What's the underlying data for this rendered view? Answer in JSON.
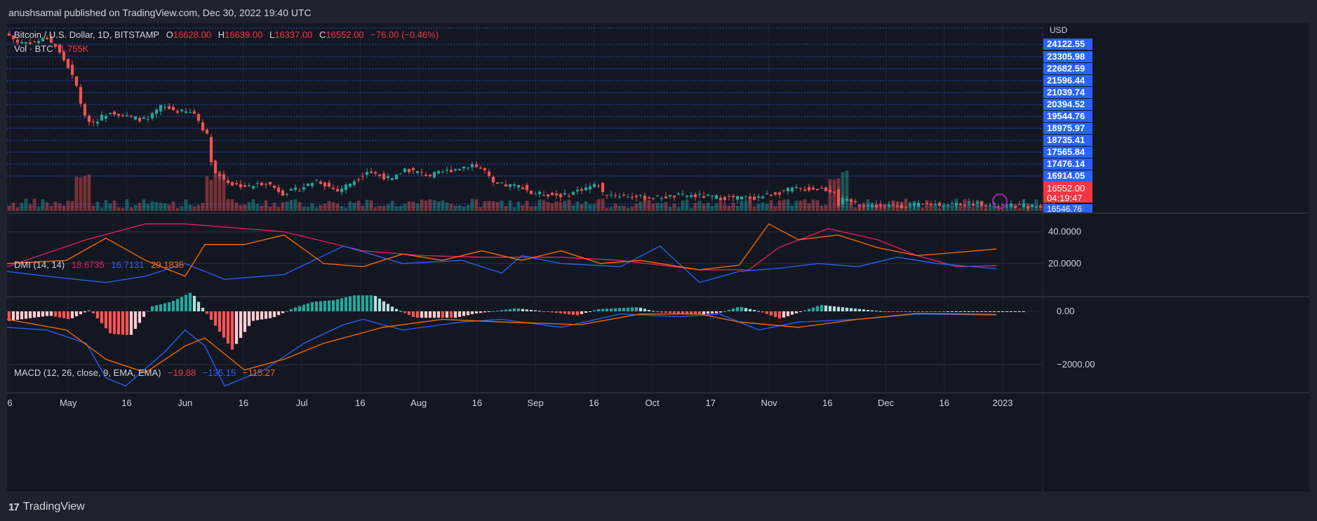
{
  "publisher": "anushsamal published on TradingView.com, Dec 30, 2022 19:40 UTC",
  "footer": "TradingView",
  "currency": "USD",
  "price_panel": {
    "symbol": "Bitcoin / U.S. Dollar, 1D, BITSTAMP",
    "o_label": "O",
    "o_value": "16628.00",
    "h_label": "H",
    "h_value": "16639.00",
    "l_label": "L",
    "l_value": "16337.00",
    "c_label": "C",
    "c_value": "16552.00",
    "change": "−76.00 (−0.46%)",
    "vol_label": "Vol · BTC",
    "vol_value": "1.755K",
    "price_labels": [
      "24122.55",
      "23305.98",
      "22682.59",
      "21596.44",
      "21039.74",
      "20394.52",
      "19544.76",
      "18975.97",
      "18735.41",
      "17565.84",
      "17476.14",
      "16914.05"
    ],
    "last_price": "16552.00",
    "countdown": "04:19:47",
    "low_label": "16546.76"
  },
  "dmi_panel": {
    "label": "DMI (14, 14)",
    "adx": "18.6735",
    "plus_di": "16.7131",
    "minus_di": "29.1835",
    "axis": [
      "40.0000",
      "20.0000"
    ]
  },
  "macd_panel": {
    "label": "MACD (12, 26, close, 9, EMA, EMA)",
    "hist": "−19.88",
    "macd": "−135.15",
    "signal": "−115.27",
    "axis": [
      "0.00",
      "−2000.00"
    ]
  },
  "time_axis": [
    "6",
    "May",
    "16",
    "Jun",
    "16",
    "Jul",
    "16",
    "Aug",
    "16",
    "Sep",
    "16",
    "Oct",
    "17",
    "Nov",
    "16",
    "Dec",
    "16",
    "2023"
  ],
  "colors": {
    "up": "#26a69a",
    "down": "#ef5350",
    "adx": "#e91e63",
    "plus_di": "#2962ff",
    "minus_di": "#ff6d00",
    "price_line": "#2962ff",
    "last": "#f23645"
  },
  "chart_data": [
    {
      "type": "candlestick",
      "title": "Bitcoin / U.S. Dollar, 1D, BITSTAMP",
      "ylabel": "USD",
      "x_range": [
        "2022-04-26",
        "2022-12-30"
      ],
      "ylim": [
        16400,
        24700
      ],
      "anchors": [
        {
          "date": "2022-04-26",
          "close": 24300
        },
        {
          "date": "2022-04-28",
          "close": 24000
        },
        {
          "date": "2022-05-02",
          "close": 24000
        },
        {
          "date": "2022-05-05",
          "close": 24200
        },
        {
          "date": "2022-05-07",
          "close": 23800
        },
        {
          "date": "2022-05-10",
          "close": 22900
        },
        {
          "date": "2022-05-12",
          "close": 22000
        },
        {
          "date": "2022-05-14",
          "close": 20600
        },
        {
          "date": "2022-05-16",
          "close": 20400
        },
        {
          "date": "2022-05-20",
          "close": 20900
        },
        {
          "date": "2022-05-25",
          "close": 20600
        },
        {
          "date": "2022-05-29",
          "close": 20500
        },
        {
          "date": "2022-06-01",
          "close": 21100
        },
        {
          "date": "2022-06-05",
          "close": 20900
        },
        {
          "date": "2022-06-09",
          "close": 20800
        },
        {
          "date": "2022-06-12",
          "close": 19800
        },
        {
          "date": "2022-06-13",
          "close": 18700
        },
        {
          "date": "2022-06-14",
          "close": 18100
        },
        {
          "date": "2022-06-18",
          "close": 17600
        },
        {
          "date": "2022-06-22",
          "close": 17500
        },
        {
          "date": "2022-06-26",
          "close": 17700
        },
        {
          "date": "2022-06-30",
          "close": 17200
        },
        {
          "date": "2022-07-04",
          "close": 17400
        },
        {
          "date": "2022-07-08",
          "close": 17800
        },
        {
          "date": "2022-07-13",
          "close": 17300
        },
        {
          "date": "2022-07-18",
          "close": 17900
        },
        {
          "date": "2022-07-20",
          "close": 18200
        },
        {
          "date": "2022-07-26",
          "close": 17800
        },
        {
          "date": "2022-07-29",
          "close": 18300
        },
        {
          "date": "2022-08-04",
          "close": 18000
        },
        {
          "date": "2022-08-10",
          "close": 18300
        },
        {
          "date": "2022-08-14",
          "close": 18500
        },
        {
          "date": "2022-08-17",
          "close": 18200
        },
        {
          "date": "2022-08-19",
          "close": 17600
        },
        {
          "date": "2022-08-26",
          "close": 17500
        },
        {
          "date": "2022-08-28",
          "close": 17200
        },
        {
          "date": "2022-09-05",
          "close": 17100
        },
        {
          "date": "2022-09-09",
          "close": 17400
        },
        {
          "date": "2022-09-13",
          "close": 17600
        },
        {
          "date": "2022-09-14",
          "close": 17200
        },
        {
          "date": "2022-09-18",
          "close": 17100
        },
        {
          "date": "2022-09-25",
          "close": 17000
        },
        {
          "date": "2022-10-04",
          "close": 17100
        },
        {
          "date": "2022-10-13",
          "close": 17000
        },
        {
          "date": "2022-10-20",
          "close": 17000
        },
        {
          "date": "2022-10-25",
          "close": 17200
        },
        {
          "date": "2022-10-29",
          "close": 17400
        },
        {
          "date": "2022-11-05",
          "close": 17400
        },
        {
          "date": "2022-11-08",
          "close": 17300
        },
        {
          "date": "2022-11-09",
          "close": 16700
        },
        {
          "date": "2022-11-10",
          "close": 16900
        },
        {
          "date": "2022-11-14",
          "close": 16700
        },
        {
          "date": "2022-11-20",
          "close": 16600
        },
        {
          "date": "2022-11-26",
          "close": 16650
        },
        {
          "date": "2022-12-01",
          "close": 16700
        },
        {
          "date": "2022-12-13",
          "close": 16750
        },
        {
          "date": "2022-12-15",
          "close": 16650
        },
        {
          "date": "2022-12-24",
          "close": 16620
        },
        {
          "date": "2022-12-30",
          "close": 16552
        }
      ]
    },
    {
      "type": "line",
      "title": "DMI (14, 14)",
      "ylim": [
        0,
        50
      ],
      "series": [
        {
          "name": "ADX",
          "values": [
            [
              0,
              18
            ],
            [
              0.08,
              35
            ],
            [
              0.14,
              45
            ],
            [
              0.18,
              45
            ],
            [
              0.28,
              40
            ],
            [
              0.36,
              28
            ],
            [
              0.42,
              25
            ],
            [
              0.48,
              24
            ],
            [
              0.56,
              24
            ],
            [
              0.62,
              22
            ],
            [
              0.7,
              16
            ],
            [
              0.75,
              16
            ],
            [
              0.78,
              30
            ],
            [
              0.83,
              42
            ],
            [
              0.88,
              35
            ],
            [
              0.92,
              25
            ],
            [
              0.96,
              18
            ],
            [
              1,
              18.6735
            ]
          ]
        },
        {
          "name": "+DI",
          "values": [
            [
              0,
              15
            ],
            [
              0.04,
              12
            ],
            [
              0.1,
              8
            ],
            [
              0.14,
              12
            ],
            [
              0.18,
              20
            ],
            [
              0.22,
              10
            ],
            [
              0.28,
              13
            ],
            [
              0.34,
              31
            ],
            [
              0.4,
              20
            ],
            [
              0.46,
              22
            ],
            [
              0.5,
              14
            ],
            [
              0.52,
              25
            ],
            [
              0.56,
              20
            ],
            [
              0.62,
              18
            ],
            [
              0.66,
              31
            ],
            [
              0.7,
              8
            ],
            [
              0.74,
              15
            ],
            [
              0.78,
              17
            ],
            [
              0.82,
              20
            ],
            [
              0.86,
              18
            ],
            [
              0.9,
              24
            ],
            [
              0.94,
              20
            ],
            [
              1,
              16.7131
            ]
          ]
        },
        {
          "name": "−DI",
          "values": [
            [
              0,
              20
            ],
            [
              0.06,
              22
            ],
            [
              0.1,
              36
            ],
            [
              0.14,
              22
            ],
            [
              0.18,
              12
            ],
            [
              0.2,
              32
            ],
            [
              0.24,
              32
            ],
            [
              0.28,
              38
            ],
            [
              0.32,
              20
            ],
            [
              0.36,
              18
            ],
            [
              0.4,
              26
            ],
            [
              0.44,
              22
            ],
            [
              0.48,
              28
            ],
            [
              0.52,
              22
            ],
            [
              0.56,
              28
            ],
            [
              0.6,
              20
            ],
            [
              0.64,
              22
            ],
            [
              0.7,
              16
            ],
            [
              0.74,
              19
            ],
            [
              0.77,
              45
            ],
            [
              0.8,
              35
            ],
            [
              0.84,
              38
            ],
            [
              0.88,
              30
            ],
            [
              0.92,
              25
            ],
            [
              0.96,
              27
            ],
            [
              1,
              29.1835
            ]
          ]
        }
      ]
    },
    {
      "type": "bar",
      "title": "MACD (12, 26, close, 9, EMA, EMA)",
      "ylim": [
        -3000,
        500
      ],
      "series": [
        {
          "name": "MACD",
          "values": [
            [
              0,
              -600
            ],
            [
              0.04,
              -700
            ],
            [
              0.08,
              -1200
            ],
            [
              0.1,
              -2500
            ],
            [
              0.12,
              -2800
            ],
            [
              0.16,
              -1500
            ],
            [
              0.18,
              -700
            ],
            [
              0.2,
              -1300
            ],
            [
              0.22,
              -2800
            ],
            [
              0.26,
              -2200
            ],
            [
              0.3,
              -1200
            ],
            [
              0.34,
              -500
            ],
            [
              0.36,
              -300
            ],
            [
              0.4,
              -700
            ],
            [
              0.46,
              -400
            ],
            [
              0.5,
              -300
            ],
            [
              0.56,
              -600
            ],
            [
              0.62,
              -100
            ],
            [
              0.68,
              -200
            ],
            [
              0.72,
              -100
            ],
            [
              0.76,
              -700
            ],
            [
              0.8,
              -400
            ],
            [
              0.86,
              -300
            ],
            [
              0.92,
              -100
            ],
            [
              1,
              -135.15
            ]
          ]
        },
        {
          "name": "Signal",
          "values": [
            [
              0,
              -300
            ],
            [
              0.06,
              -700
            ],
            [
              0.1,
              -1800
            ],
            [
              0.14,
              -2300
            ],
            [
              0.18,
              -1300
            ],
            [
              0.2,
              -1000
            ],
            [
              0.24,
              -2200
            ],
            [
              0.28,
              -1800
            ],
            [
              0.32,
              -1200
            ],
            [
              0.38,
              -600
            ],
            [
              0.44,
              -300
            ],
            [
              0.5,
              -400
            ],
            [
              0.58,
              -500
            ],
            [
              0.64,
              -100
            ],
            [
              0.7,
              -100
            ],
            [
              0.74,
              -400
            ],
            [
              0.8,
              -600
            ],
            [
              0.86,
              -300
            ],
            [
              0.92,
              -80
            ],
            [
              1,
              -115.27
            ]
          ]
        }
      ]
    }
  ]
}
